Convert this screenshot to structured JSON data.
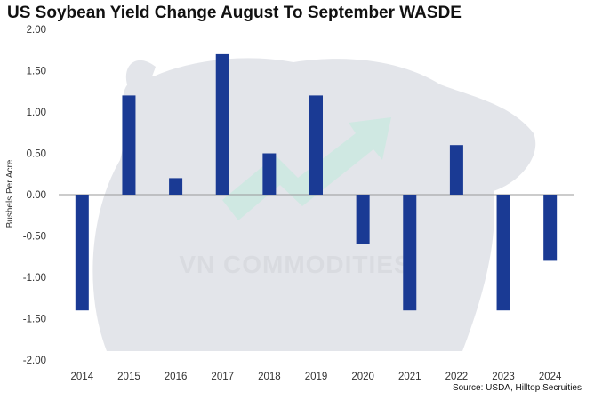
{
  "chart_data": {
    "type": "bar",
    "title": "US Soybean Yield Change August To September WASDE",
    "ylabel": "Bushels Per Acre",
    "xlabel": "",
    "categories": [
      "2014",
      "2015",
      "2016",
      "2017",
      "2018",
      "2019",
      "2020",
      "2021",
      "2022",
      "2023",
      "2024"
    ],
    "values": [
      -1.4,
      1.2,
      0.2,
      1.7,
      0.5,
      1.2,
      -0.6,
      -1.4,
      0.6,
      -1.4,
      -0.8
    ],
    "ylim": [
      -2.0,
      2.0
    ],
    "yticks": [
      "2.00",
      "1.50",
      "1.00",
      "0.50",
      "0.00",
      "-0.50",
      "-1.00",
      "-1.50",
      "-2.00"
    ],
    "grid": false,
    "legend": "none",
    "bar_color": "#1a3a94",
    "source": "Source: USDA, Hilltop Secruities"
  },
  "watermark": {
    "text": "VN COMMODITIES",
    "kind": "bull-logo"
  },
  "colors": {
    "watermark": "#e3e5ea",
    "arrow": "#cfe8e2",
    "zero_line": "#999999"
  }
}
